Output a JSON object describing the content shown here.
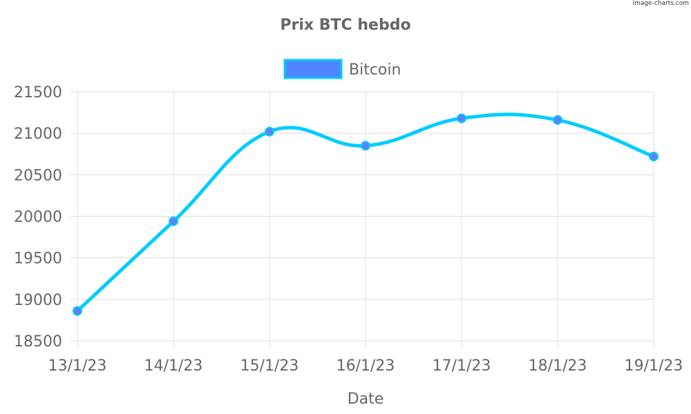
{
  "watermark": "image-charts.com",
  "chart_data": {
    "type": "line",
    "title": "Prix BTC hebdo",
    "xlabel": "Date",
    "ylabel": "",
    "categories": [
      "13/1/23",
      "14/1/23",
      "15/1/23",
      "16/1/23",
      "17/1/23",
      "18/1/23",
      "19/1/23"
    ],
    "series": [
      {
        "name": "Bitcoin",
        "values": [
          18860,
          19940,
          21020,
          20850,
          21180,
          21160,
          20720
        ]
      }
    ],
    "ylim": [
      18500,
      21500
    ],
    "yticks": [
      18500,
      19000,
      19500,
      20000,
      20500,
      21000,
      21500
    ],
    "grid": true,
    "legend": "top-center",
    "colors": {
      "line": "#00ccff",
      "marker": "#5b82f5",
      "legend_fill": "#4f86ff",
      "legend_border": "#00ccff",
      "text": "#666666",
      "grid": "#dddddd"
    }
  }
}
